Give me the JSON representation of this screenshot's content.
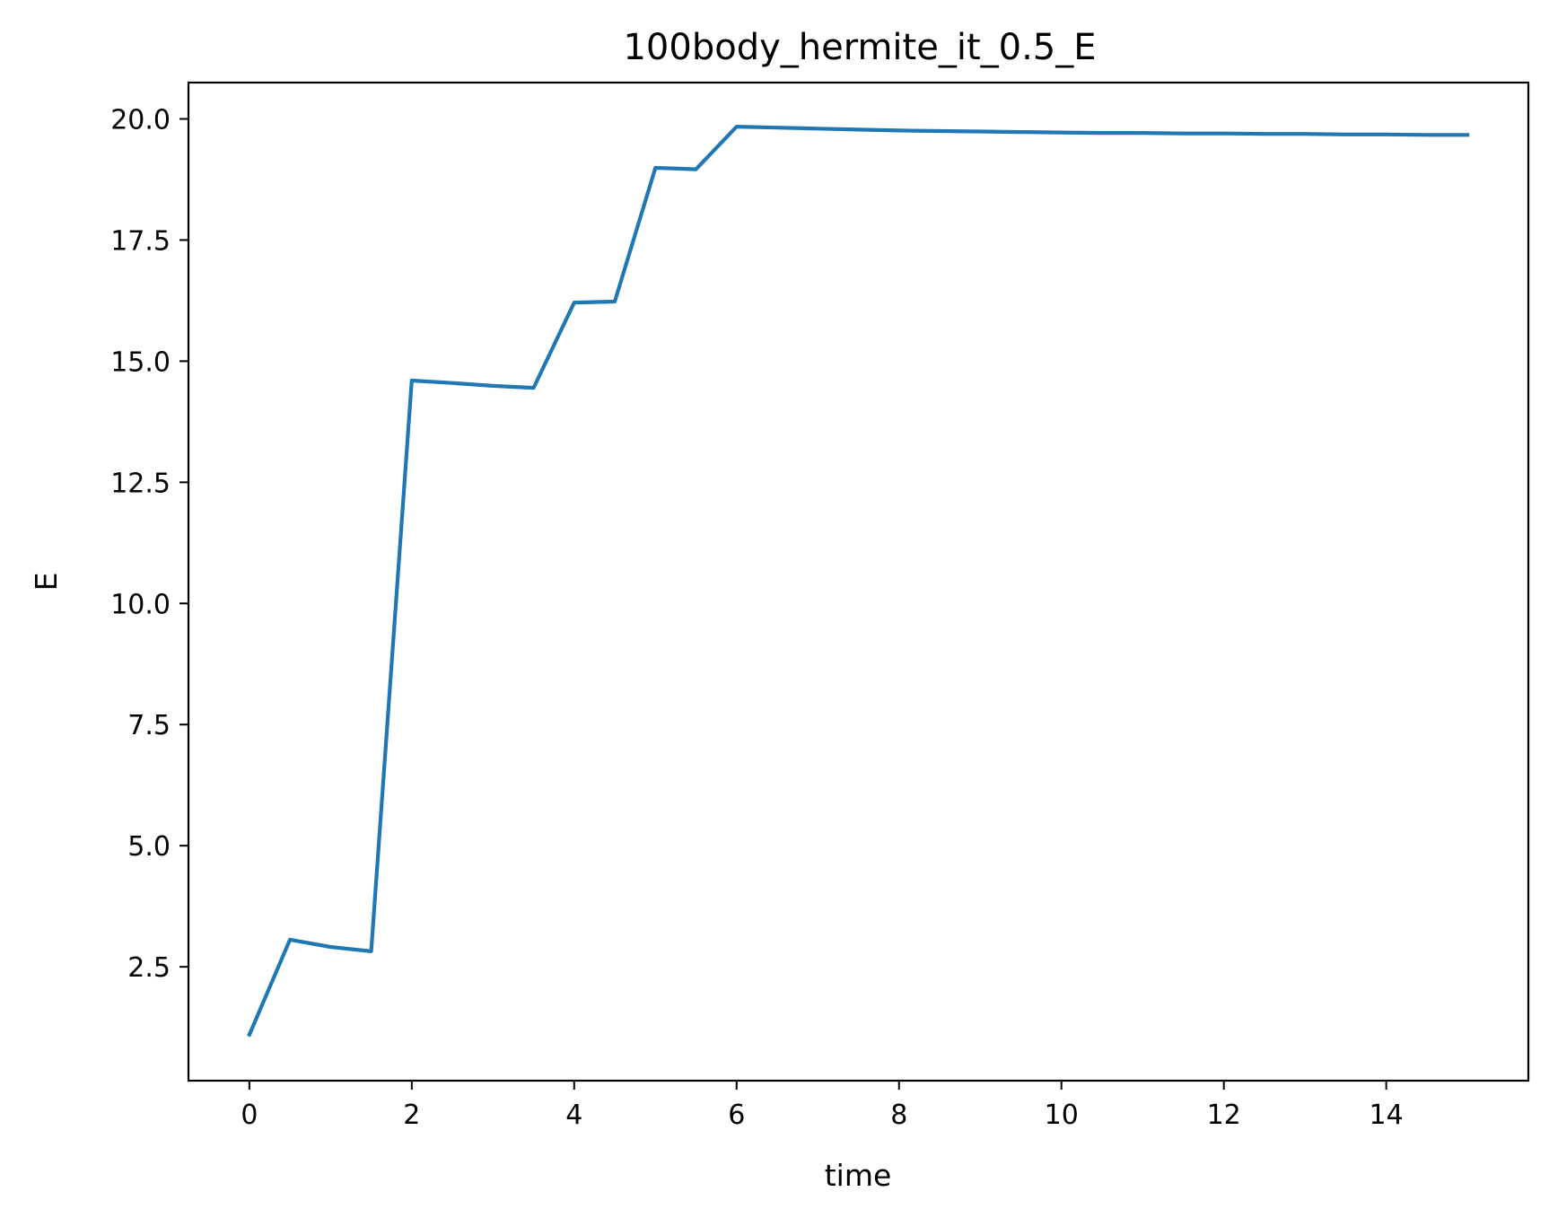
{
  "chart_data": {
    "type": "line",
    "title": "100body_hermite_it_0.5_E",
    "xlabel": "time",
    "ylabel": "E",
    "xlim": [
      -0.75,
      15.75
    ],
    "ylim": [
      0.15,
      20.75
    ],
    "xticks": [
      0,
      2,
      4,
      6,
      8,
      10,
      12,
      14
    ],
    "xtick_labels": [
      "0",
      "2",
      "4",
      "6",
      "8",
      "10",
      "12",
      "14"
    ],
    "yticks": [
      2.5,
      5.0,
      7.5,
      10.0,
      12.5,
      15.0,
      17.5,
      20.0
    ],
    "ytick_labels": [
      "2.5",
      "5.0",
      "7.5",
      "10.0",
      "12.5",
      "15.0",
      "17.5",
      "20.0"
    ],
    "grid": false,
    "series": [
      {
        "color": "#1f77b4",
        "x": [
          0,
          0.5,
          1,
          1.5,
          2,
          2.5,
          3,
          3.5,
          4,
          4.5,
          5,
          5.5,
          6,
          6.5,
          7,
          7.5,
          8,
          8.5,
          9,
          9.5,
          10,
          10.5,
          11,
          11.5,
          12,
          12.5,
          13,
          13.5,
          14,
          14.5,
          15
        ],
        "y": [
          1.1,
          3.06,
          2.91,
          2.82,
          14.6,
          14.55,
          14.49,
          14.45,
          16.21,
          16.23,
          18.99,
          18.96,
          19.84,
          19.82,
          19.8,
          19.78,
          19.76,
          19.75,
          19.74,
          19.73,
          19.72,
          19.71,
          19.71,
          19.7,
          19.7,
          19.69,
          19.69,
          19.68,
          19.68,
          19.67,
          19.67
        ]
      }
    ]
  }
}
